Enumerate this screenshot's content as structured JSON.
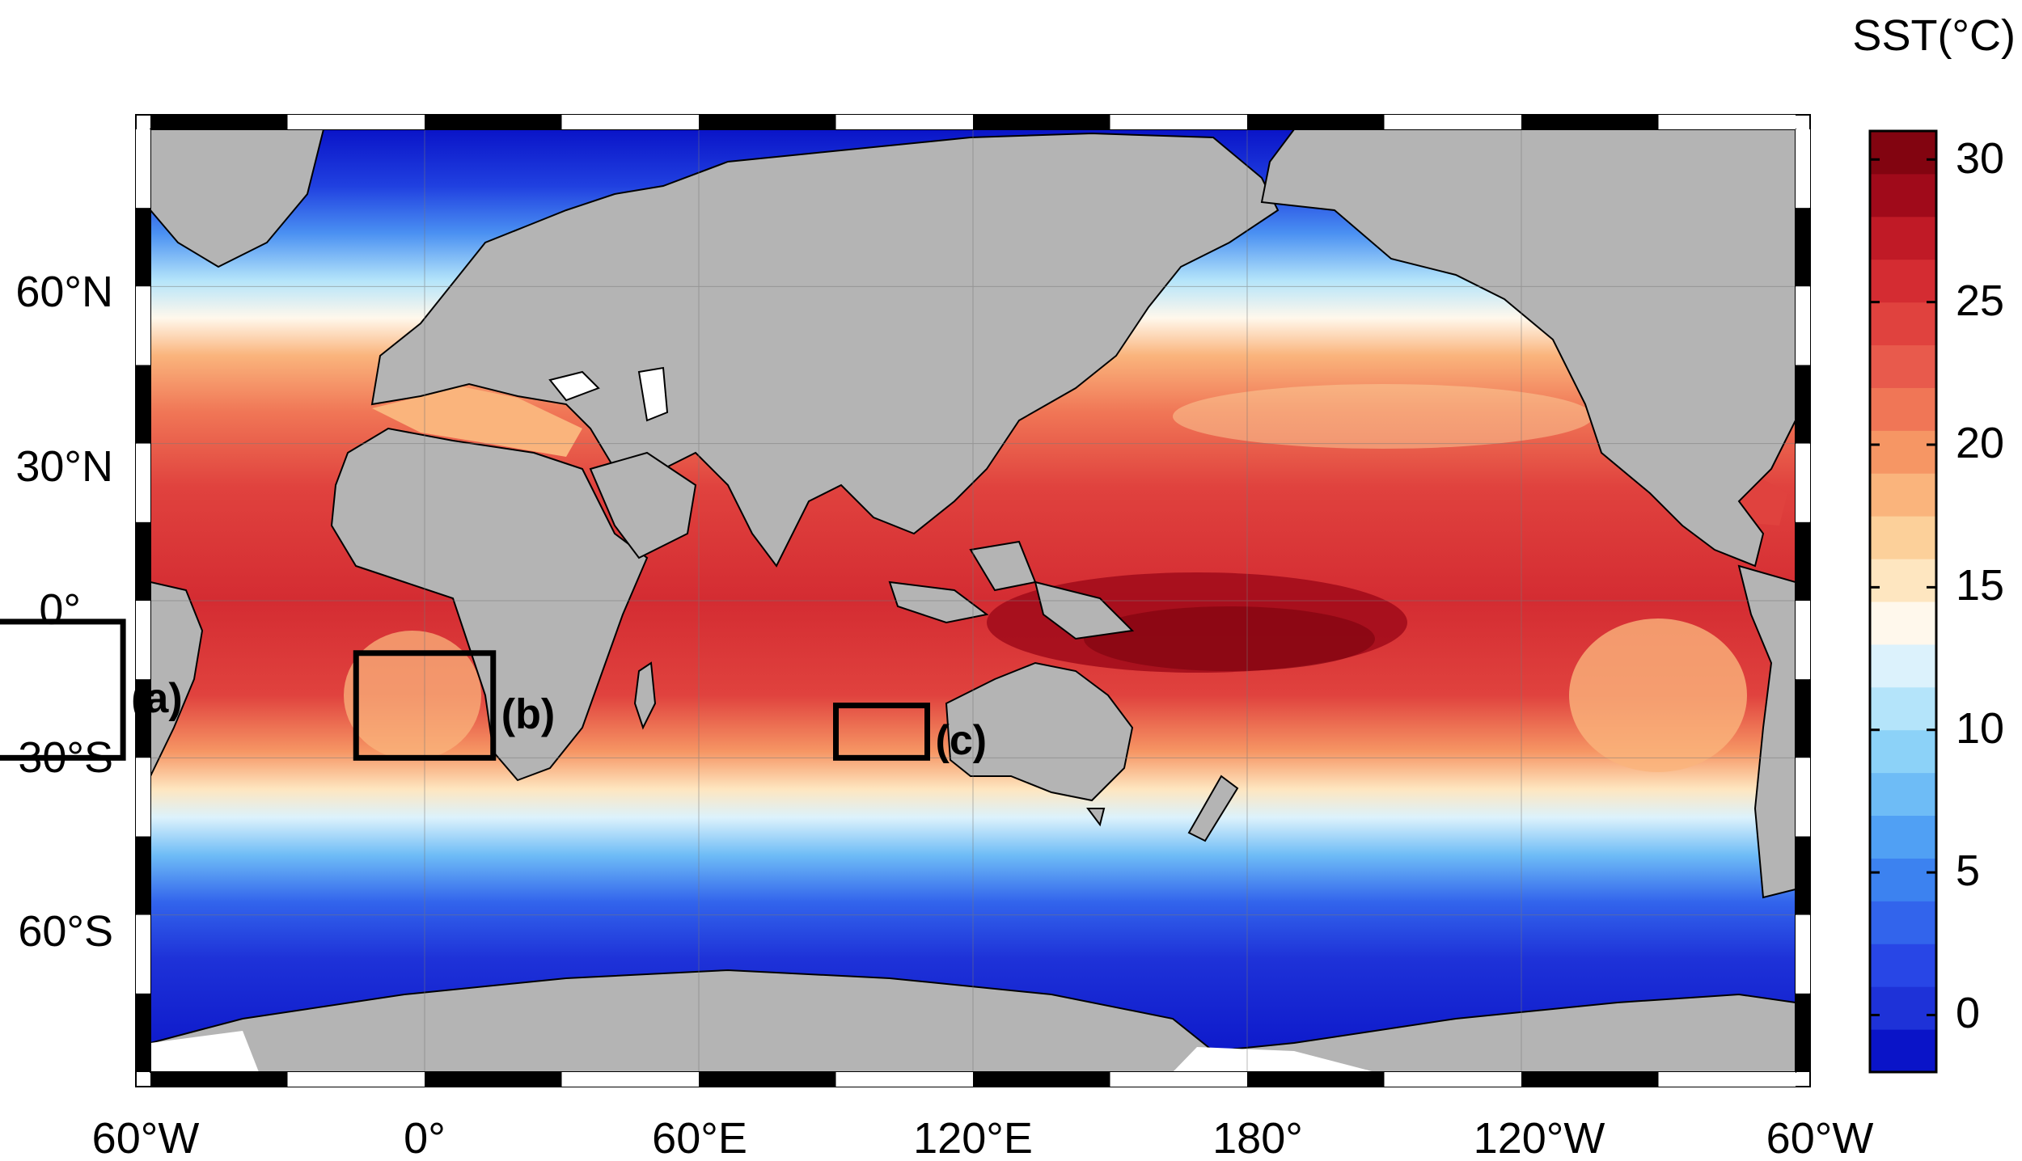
{
  "colorbar": {
    "title": "SST(°C)",
    "ticks": [
      "30",
      "25",
      "20",
      "15",
      "10",
      "5",
      "0"
    ],
    "range": [
      -2,
      31
    ],
    "colors": [
      "#0a14c8",
      "#1e32d8",
      "#2846e6",
      "#3264ec",
      "#3c82f0",
      "#50a0f4",
      "#6ebcf6",
      "#8cd2f8",
      "#b4e4fa",
      "#dcf2fc",
      "#fff8ec",
      "#fee6c0",
      "#fcd09a",
      "#fab47c",
      "#f69664",
      "#f07656",
      "#e85a4c",
      "#e0423e",
      "#d42c32",
      "#c01a26",
      "#a00a1a",
      "#820410"
    ]
  },
  "axes": {
    "lon_labels": [
      "60°W",
      "0°",
      "60°E",
      "120°E",
      "180°",
      "120°W",
      "60°W"
    ],
    "lat_labels": [
      "60°N",
      "30°N",
      "0°",
      "30°S",
      "60°S"
    ],
    "lon_range": [
      -60,
      300
    ],
    "lat_range": [
      -90,
      90
    ]
  },
  "regions": [
    {
      "label": "(a)",
      "lon": [
        -100,
        -66
      ],
      "lat": [
        -30,
        -4
      ]
    },
    {
      "label": "(b)",
      "lon": [
        -15,
        15
      ],
      "lat": [
        -30,
        -10
      ]
    },
    {
      "label": "(c)",
      "lon": [
        90,
        110
      ],
      "lat": [
        -30,
        -20
      ]
    }
  ],
  "colors": {
    "land": "#b4b4b4",
    "ocean_cold": "#0a14c8",
    "ocean_warm": "#820410",
    "frame": "#000000"
  }
}
